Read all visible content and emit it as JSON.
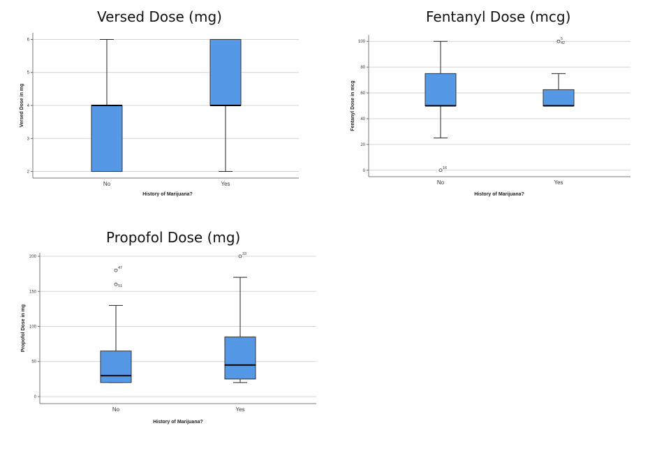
{
  "chart_data": [
    {
      "type": "boxplot",
      "title": "Versed Dose (mg)",
      "xlabel": "History of Marijuana?",
      "ylabel": "Versed Dose in mg",
      "categories": [
        "No",
        "Yes"
      ],
      "ylim": [
        1.8,
        6.2
      ],
      "yticks": [
        2,
        3,
        4,
        5,
        6
      ],
      "grid": true,
      "box_color": "#5599e6",
      "boxes": [
        {
          "category": "No",
          "min": 2,
          "q1": 2,
          "median": 4,
          "q3": 4,
          "max": 6,
          "outliers": []
        },
        {
          "category": "Yes",
          "min": 2,
          "q1": 4,
          "median": 4,
          "q3": 6,
          "max": 6,
          "outliers": []
        }
      ]
    },
    {
      "type": "boxplot",
      "title": "Fentanyl Dose (mcg)",
      "xlabel": "History of Marijuana?",
      "ylabel": "Fentanyl Dose in mcg",
      "categories": [
        "No",
        "Yes"
      ],
      "ylim": [
        -5,
        105
      ],
      "yticks": [
        0,
        20,
        40,
        60,
        80,
        100
      ],
      "grid": true,
      "box_color": "#5599e6",
      "boxes": [
        {
          "category": "No",
          "min": 25,
          "q1": 50,
          "median": 50,
          "q3": 75,
          "max": 100,
          "outliers": [
            {
              "value": 0,
              "label": "16"
            }
          ]
        },
        {
          "category": "Yes",
          "min": 50,
          "q1": 50,
          "median": 50,
          "q3": 62.5,
          "max": 75,
          "outliers": [
            {
              "value": 100,
              "label": "5"
            },
            {
              "value": 100,
              "label": "42"
            }
          ]
        }
      ]
    },
    {
      "type": "boxplot",
      "title": "Propofol Dose (mg)",
      "xlabel": "History of Marijuana?",
      "ylabel": "Propofol Dose in mg",
      "categories": [
        "No",
        "Yes"
      ],
      "ylim": [
        -10,
        205
      ],
      "yticks": [
        0,
        50,
        100,
        150,
        200
      ],
      "grid": true,
      "box_color": "#5599e6",
      "boxes": [
        {
          "category": "No",
          "min": 20,
          "q1": 20,
          "median": 30,
          "q3": 65,
          "max": 130,
          "outliers": [
            {
              "value": 180,
              "label": "47"
            },
            {
              "value": 160,
              "label": "51"
            }
          ]
        },
        {
          "category": "Yes",
          "min": 20,
          "q1": 25,
          "median": 45,
          "q3": 85,
          "max": 170,
          "outliers": [
            {
              "value": 200,
              "label": "33"
            }
          ]
        }
      ]
    }
  ]
}
